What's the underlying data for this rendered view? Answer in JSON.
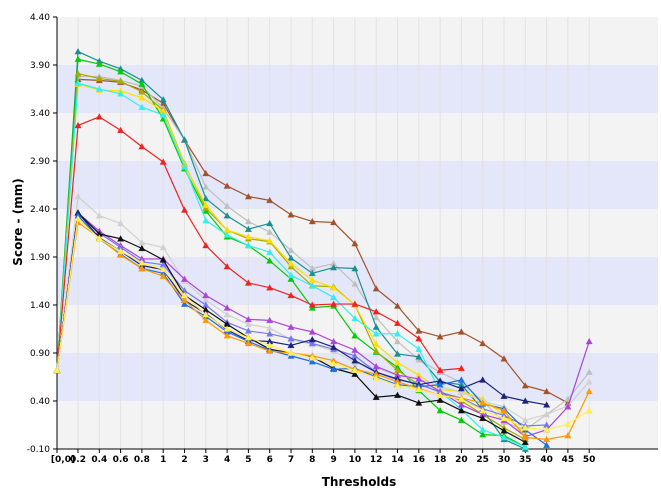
{
  "chart_data": {
    "type": "line",
    "title": "",
    "xlabel": "Thresholds",
    "ylabel": "Score - (mm)",
    "ylim": [
      -0.1,
      4.4
    ],
    "yticks": [
      -0.1,
      0.4,
      0.9,
      1.4,
      1.9,
      2.4,
      2.9,
      3.4,
      3.9,
      4.4
    ],
    "ytick_labels": [
      "-0.10",
      "0.40",
      "0.90",
      "1.40",
      "1.90",
      "2.40",
      "2.90",
      "3.40",
      "3.90",
      "4.40"
    ],
    "grid": "alternating horizontal bands",
    "legend": "none",
    "categories": [
      "[0,0]",
      "0.2",
      "0.4",
      "0.6",
      "0.8",
      "1",
      "2",
      "3",
      "4",
      "5",
      "6",
      "7",
      "8",
      "9",
      "10",
      "12",
      "14",
      "16",
      "18",
      "20",
      "25",
      "30",
      "35",
      "40",
      "45",
      "50"
    ],
    "band_colors": {
      "light": "#f3f3f3",
      "dark": "#e3e7f9"
    },
    "series": [
      {
        "color": "#a0522d",
        "marker": "triangle",
        "values": [
          0.72,
          3.75,
          3.74,
          3.72,
          3.64,
          3.5,
          3.12,
          2.77,
          2.64,
          2.53,
          2.49,
          2.34,
          2.27,
          2.26,
          2.04,
          1.57,
          1.39,
          1.13,
          1.07,
          1.12,
          1.0,
          0.84,
          0.56,
          0.5,
          0.38,
          null
        ]
      },
      {
        "color": "#bfbfbf",
        "marker": "triangle",
        "values": [
          0.72,
          3.78,
          3.78,
          3.74,
          3.68,
          3.45,
          3.12,
          2.63,
          2.43,
          2.27,
          2.16,
          1.97,
          1.78,
          1.83,
          1.62,
          1.27,
          1.02,
          0.83,
          0.7,
          0.59,
          0.4,
          0.18,
          0.1,
          0.26,
          0.42,
          0.7
        ]
      },
      {
        "color": "#1a8f8f",
        "marker": "triangle",
        "values": [
          0.72,
          4.04,
          3.94,
          3.86,
          3.74,
          3.54,
          3.12,
          2.51,
          2.33,
          2.19,
          2.25,
          1.89,
          1.73,
          1.79,
          1.78,
          1.17,
          0.89,
          0.86,
          0.6,
          0.57,
          0.31,
          0.0,
          -0.1,
          null,
          null,
          null
        ]
      },
      {
        "color": "#00cc00",
        "marker": "triangle",
        "values": [
          0.72,
          3.96,
          3.91,
          3.83,
          3.7,
          3.34,
          2.82,
          2.38,
          2.11,
          2.02,
          1.86,
          1.67,
          1.37,
          1.39,
          1.08,
          0.91,
          0.75,
          0.51,
          0.3,
          0.2,
          0.05,
          0.04,
          -0.08,
          null,
          null,
          null
        ]
      },
      {
        "color": "#aaaa00",
        "marker": "triangle",
        "values": [
          0.72,
          3.81,
          3.76,
          3.73,
          3.62,
          3.43,
          2.87,
          2.41,
          2.18,
          2.09,
          2.06,
          1.8,
          1.6,
          1.59,
          1.4,
          0.92,
          0.72,
          0.57,
          0.5,
          0.4,
          0.26,
          0.12,
          0.0,
          null,
          null,
          null
        ]
      },
      {
        "color": "#ffdd00",
        "marker": "triangle",
        "values": [
          0.72,
          3.7,
          3.64,
          3.63,
          3.56,
          3.42,
          2.86,
          2.44,
          2.18,
          2.11,
          2.07,
          1.83,
          1.66,
          1.58,
          1.4,
          0.99,
          0.8,
          0.67,
          0.52,
          0.5,
          0.42,
          0.25,
          0.06,
          null,
          null,
          0.3
        ]
      },
      {
        "color": "#33eeee",
        "marker": "triangle",
        "values": [
          0.72,
          3.71,
          3.65,
          3.6,
          3.46,
          3.38,
          2.84,
          2.28,
          2.13,
          2.02,
          1.95,
          1.71,
          1.6,
          1.48,
          1.26,
          1.1,
          1.1,
          0.94,
          0.5,
          0.31,
          0.1,
          0.02,
          -0.08,
          null,
          null,
          null
        ]
      },
      {
        "color": "#ee2222",
        "marker": "triangle",
        "values": [
          0.72,
          3.27,
          3.36,
          3.22,
          3.05,
          2.89,
          2.39,
          2.02,
          1.8,
          1.63,
          1.58,
          1.5,
          1.4,
          1.41,
          1.41,
          1.33,
          1.21,
          1.05,
          0.72,
          0.74,
          null,
          null,
          null,
          null,
          null,
          null
        ]
      },
      {
        "color": "#d0d0d0",
        "marker": "triangle",
        "values": [
          0.72,
          2.53,
          2.33,
          2.25,
          2.05,
          2.0,
          1.65,
          1.45,
          1.3,
          1.2,
          1.16,
          1.04,
          0.99,
          0.92,
          0.8,
          0.75,
          0.66,
          0.63,
          0.55,
          0.49,
          0.4,
          0.34,
          0.2,
          0.26,
          0.35,
          0.6
        ]
      },
      {
        "color": "#aa44dd",
        "marker": "triangle",
        "values": [
          0.72,
          2.36,
          2.17,
          2.02,
          1.88,
          1.88,
          1.67,
          1.5,
          1.37,
          1.25,
          1.24,
          1.17,
          1.12,
          1.02,
          0.93,
          0.76,
          0.67,
          0.63,
          0.5,
          0.36,
          0.26,
          0.2,
          0.03,
          0.1,
          0.34,
          1.02
        ]
      },
      {
        "color": "#7777ee",
        "marker": "triangle",
        "values": [
          0.72,
          2.36,
          2.15,
          2.0,
          1.85,
          1.82,
          1.55,
          1.4,
          1.22,
          1.13,
          1.1,
          1.05,
          1.0,
          0.94,
          0.87,
          0.7,
          0.62,
          0.58,
          0.49,
          0.43,
          0.32,
          0.25,
          0.14,
          0.15,
          null,
          null
        ]
      },
      {
        "color": "#111111",
        "marker": "triangle",
        "values": [
          0.72,
          2.36,
          2.14,
          2.09,
          1.99,
          1.87,
          1.5,
          1.35,
          1.2,
          1.06,
          0.94,
          0.9,
          0.86,
          0.74,
          0.68,
          0.44,
          0.46,
          0.38,
          0.41,
          0.3,
          0.22,
          0.09,
          -0.03,
          null,
          null,
          null
        ]
      },
      {
        "color": "#1a237e",
        "marker": "triangle",
        "values": [
          0.72,
          2.36,
          2.1,
          1.96,
          1.81,
          1.77,
          1.45,
          1.31,
          1.14,
          1.03,
          1.02,
          0.98,
          1.04,
          0.96,
          0.82,
          0.7,
          0.63,
          0.57,
          0.61,
          0.53,
          0.62,
          0.45,
          0.4,
          0.36,
          null,
          null
        ]
      },
      {
        "color": "#1f6fe0",
        "marker": "triangle",
        "values": [
          0.72,
          2.33,
          2.09,
          1.93,
          1.78,
          1.73,
          1.41,
          1.28,
          1.12,
          1.02,
          0.93,
          0.87,
          0.81,
          0.73,
          0.74,
          0.65,
          0.57,
          0.55,
          0.57,
          0.62,
          0.37,
          0.32,
          0.1,
          -0.06,
          null,
          null
        ]
      },
      {
        "color": "#ff9900",
        "marker": "triangle",
        "values": [
          0.72,
          2.26,
          2.1,
          1.92,
          1.78,
          1.7,
          1.45,
          1.24,
          1.08,
          1.0,
          0.92,
          0.9,
          0.87,
          0.82,
          0.73,
          0.68,
          0.6,
          0.53,
          0.46,
          0.43,
          0.38,
          0.3,
          0.02,
          0.0,
          0.04,
          0.5
        ]
      },
      {
        "color": "#ffee55",
        "marker": "triangle",
        "values": [
          0.72,
          2.3,
          2.09,
          1.96,
          1.84,
          1.77,
          1.5,
          1.3,
          1.15,
          1.06,
          0.98,
          0.9,
          0.85,
          0.79,
          0.72,
          0.64,
          0.56,
          0.52,
          0.46,
          0.42,
          0.3,
          0.22,
          0.12,
          0.1,
          0.16,
          0.3
        ]
      }
    ]
  }
}
